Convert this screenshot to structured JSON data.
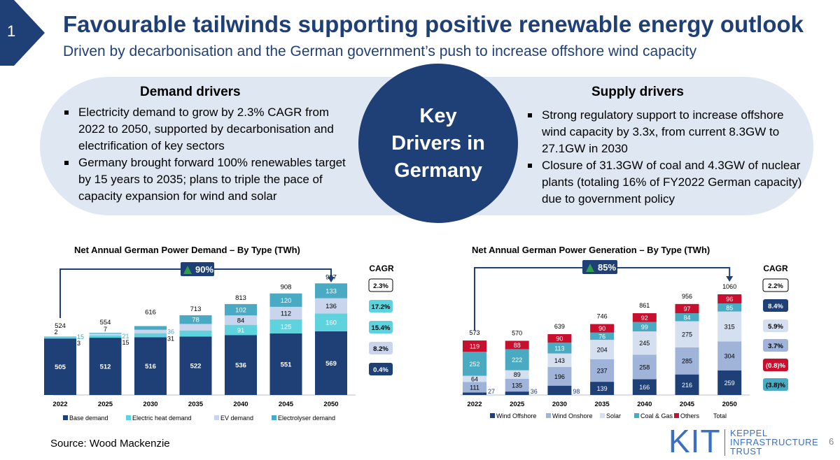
{
  "slide_number": "1",
  "title": "Favourable tailwinds supporting positive renewable energy outlook",
  "subtitle": "Driven by decarbonisation and the German government’s push to increase offshore wind capacity",
  "key_drivers": {
    "center": [
      "Key",
      "Drivers in",
      "Germany"
    ],
    "demand": {
      "heading": "Demand drivers",
      "bullets": [
        "Electricity demand to grow by 2.3% CAGR from 2022 to 2050, supported by decarbonisation and electrification of key sectors",
        "Germany brought forward 100% renewables target by 15 years to 2035; plans to triple the pace of capacity expansion for wind and solar"
      ]
    },
    "supply": {
      "heading": "Supply drivers",
      "bullets": [
        "Strong regulatory support to increase offshore wind capacity by 3.3x, from current 8.3GW to 27.1GW in 2030",
        "Closure of 31.3GW of coal and 4.3GW of nuclear plants (totaling 16% of FY2022 German capacity) due to government policy"
      ]
    }
  },
  "chart_data": [
    {
      "type": "bar",
      "stacked": true,
      "title": "Net Annual German Power Demand – By Type (TWh)",
      "categories": [
        "2022",
        "2025",
        "2030",
        "2035",
        "2040",
        "2045",
        "2050"
      ],
      "series": [
        {
          "name": "Base demand",
          "color": "#1f3f77",
          "values": [
            505,
            512,
            516,
            522,
            536,
            551,
            569
          ]
        },
        {
          "name": "Electric heat demand",
          "color": "#5ed3de",
          "values": [
            15,
            21,
            36,
            55,
            91,
            125,
            160
          ]
        },
        {
          "name": "EV demand",
          "color": "#c8d5ec",
          "values": [
            3,
            15,
            31,
            58,
            84,
            112,
            136
          ]
        },
        {
          "name": "Electrolyser demand",
          "color": "#4aa9c3",
          "values": [
            2,
            7,
            33,
            78,
            102,
            120,
            133
          ]
        }
      ],
      "totals": [
        524,
        554,
        616,
        713,
        813,
        908,
        997
      ],
      "growth_label": "90%",
      "cagr_heading": "CAGR",
      "cagr": [
        "2.3%",
        "17.2%",
        "15.4%",
        "8.2%",
        "0.4%"
      ]
    },
    {
      "type": "bar",
      "stacked": true,
      "title": "Net Annual German Power Generation – By Type (TWh)",
      "categories": [
        "2022",
        "2025",
        "2030",
        "2035",
        "2040",
        "2045",
        "2050"
      ],
      "series": [
        {
          "name": "Wind Offshore",
          "color": "#1f3f77",
          "values": [
            27,
            36,
            98,
            139,
            166,
            216,
            259
          ]
        },
        {
          "name": "Wind Onshore",
          "color": "#9fb4d8",
          "values": [
            111,
            135,
            196,
            237,
            258,
            285,
            304
          ]
        },
        {
          "name": "Solar",
          "color": "#d4dff0",
          "values": [
            64,
            89,
            143,
            204,
            245,
            275,
            315
          ]
        },
        {
          "name": "Coal & Gas",
          "color": "#49aac1",
          "values": [
            252,
            222,
            113,
            76,
            99,
            84,
            85
          ]
        },
        {
          "name": "Others",
          "color": "#c8102e",
          "values": [
            119,
            88,
            90,
            90,
            92,
            97,
            96
          ]
        }
      ],
      "totals": [
        573,
        570,
        639,
        746,
        861,
        956,
        1060
      ],
      "total_legend": "Total",
      "growth_label": "85%",
      "cagr_heading": "CAGR",
      "cagr": [
        "2.2%",
        "8.4%",
        "5.9%",
        "3.7%",
        "(0.8)%",
        "(3.8)%"
      ]
    }
  ],
  "source": "Source: Wood Mackenzie",
  "logo": {
    "mark": "KIT",
    "name": [
      "KEPPEL",
      "INFRASTRUCTURE",
      "TRUST"
    ]
  },
  "page_number": "6",
  "colors": {
    "navy": "#1f3f77",
    "pill": "#dfe7f2",
    "arrow_green": "#2e9e48",
    "logo_blue": "#3a6fc4"
  }
}
